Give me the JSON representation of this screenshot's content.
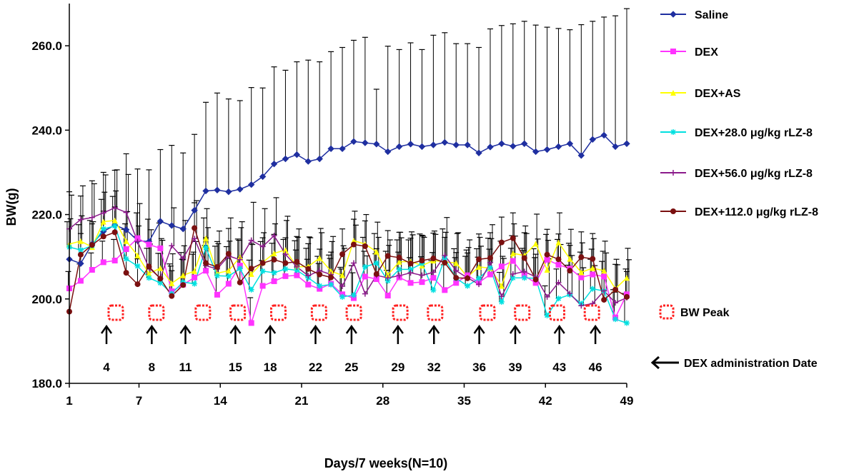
{
  "chart_data": {
    "type": "line",
    "title": "",
    "xlabel": "Days/7 weeks(N=10)",
    "ylabel": "BW(g)",
    "xlim": [
      1,
      49
    ],
    "ylim": [
      180,
      270
    ],
    "xticks": [
      "1",
      "7",
      "14",
      "21",
      "28",
      "35",
      "42",
      "49"
    ],
    "yticks": [
      "180.0",
      "200.0",
      "220.0",
      "240.0",
      "260.0"
    ],
    "series": [
      {
        "name": "Saline",
        "color": "#1f2fa0",
        "marker": "diamond",
        "values": [
          209.4,
          208.4,
          213.0,
          216.0,
          217.5,
          216.4,
          213.8,
          213.6,
          218.4,
          217.4,
          216.6,
          221.0,
          225.6,
          225.8,
          225.4,
          226.0,
          227.1,
          229.0,
          232.0,
          233.2,
          234.2,
          232.6,
          233.2,
          235.6,
          235.6,
          237.3,
          237.0,
          236.7,
          234.9,
          236.1,
          236.7,
          236.1,
          236.5,
          237.1,
          236.5,
          236.5,
          234.6,
          236.0,
          236.8,
          236.2,
          236.8,
          234.9,
          235.4,
          236.1,
          236.8,
          234.0,
          237.8,
          238.8,
          236.1,
          236.8
        ],
        "err": [
          16,
          16,
          15,
          14,
          13,
          18,
          17,
          17,
          17,
          19,
          18,
          18,
          21,
          23,
          22,
          21,
          23,
          21,
          23,
          21,
          22,
          24,
          23,
          23,
          24,
          24,
          25,
          13,
          25,
          23,
          24,
          23,
          26,
          26,
          24,
          24,
          25,
          28,
          28,
          29,
          29,
          30,
          29,
          28,
          27,
          31,
          28,
          28,
          31,
          32
        ]
      },
      {
        "name": "DEX",
        "color": "#ff33ff",
        "marker": "square",
        "values": [
          202.5,
          204.3,
          206.9,
          208.7,
          209.1,
          211.8,
          214.4,
          212.9,
          212.0,
          201.8,
          203.4,
          205.1,
          206.7,
          201.0,
          203.6,
          207.9,
          194.3,
          203.1,
          204.2,
          205.4,
          205.6,
          203.4,
          202.4,
          203.6,
          201.1,
          200.2,
          205.3,
          204.7,
          200.8,
          205.1,
          203.8,
          204.0,
          205.0,
          202.1,
          203.8,
          205.6,
          203.9,
          205.8,
          207.7,
          209.0,
          205.5,
          203.8,
          209.3,
          208.1,
          207.2,
          205.1,
          205.8,
          205.3,
          195.6,
          201.1
        ],
        "err": [
          4,
          4,
          4,
          5,
          5,
          6,
          6,
          6,
          6,
          6,
          6,
          6,
          6,
          6,
          6,
          6,
          6,
          6,
          6,
          6,
          6,
          6,
          6,
          6,
          6,
          6,
          6,
          6,
          6,
          6,
          6,
          6,
          6,
          6,
          6,
          6,
          6,
          6,
          6,
          6,
          6,
          6,
          6,
          6,
          6,
          6,
          6,
          6,
          6,
          6
        ]
      },
      {
        "name": "DEX+AS",
        "color": "#ffff00",
        "marker": "triangle",
        "values": [
          213.0,
          213.7,
          212.3,
          218.3,
          218.6,
          213.7,
          210.3,
          206.0,
          207.3,
          203.7,
          205.6,
          206.6,
          214.4,
          206.1,
          206.7,
          209.9,
          205.9,
          208.7,
          210.8,
          211.6,
          207.6,
          207.7,
          209.7,
          206.6,
          205.6,
          213.8,
          213.0,
          211.2,
          205.7,
          208.8,
          208.9,
          207.9,
          209.1,
          208.8,
          208.5,
          205.2,
          207.6,
          207.3,
          203.1,
          210.8,
          210.3,
          213.1,
          206.9,
          213.4,
          209.5,
          206.3,
          207.3,
          206.7,
          202.4,
          205.0
        ],
        "err": [
          6,
          6,
          6,
          7,
          7,
          7,
          7,
          7,
          7,
          7,
          7,
          7,
          7,
          7,
          7,
          7,
          7,
          7,
          7,
          7,
          7,
          7,
          7,
          7,
          7,
          7,
          7,
          7,
          7,
          7,
          7,
          7,
          7,
          7,
          7,
          7,
          7,
          7,
          7,
          7,
          7,
          7,
          7,
          7,
          7,
          7,
          7,
          7,
          7,
          7
        ]
      },
      {
        "name": "DEX+28.0 μg/kg rLZ-8",
        "color": "#00e0e0",
        "marker": "star",
        "values": [
          212.3,
          211.6,
          212.6,
          216.6,
          217.3,
          209.5,
          207.8,
          205.0,
          203.8,
          201.3,
          204.0,
          203.6,
          212.2,
          205.5,
          205.4,
          207.2,
          202.2,
          206.6,
          206.2,
          207.1,
          206.8,
          205.0,
          203.1,
          203.4,
          200.5,
          200.9,
          207.6,
          208.5,
          204.3,
          207.0,
          207.0,
          208.4,
          202.1,
          209.6,
          204.9,
          203.1,
          204.9,
          207.4,
          199.3,
          205.0,
          205.0,
          204.9,
          196.1,
          200.1,
          201.0,
          198.9,
          202.4,
          201.9,
          195.2,
          194.3
        ],
        "err": [
          6,
          6,
          6,
          7,
          7,
          7,
          7,
          7,
          7,
          7,
          7,
          7,
          7,
          7,
          7,
          7,
          7,
          7,
          7,
          7,
          7,
          7,
          7,
          7,
          7,
          7,
          7,
          7,
          7,
          7,
          7,
          7,
          7,
          7,
          7,
          7,
          7,
          7,
          7,
          7,
          7,
          7,
          7,
          7,
          7,
          7,
          7,
          7,
          7,
          7
        ]
      },
      {
        "name": "DEX+56.0 μg/kg rLZ-8",
        "color": "#8b1a8b",
        "marker": "cross",
        "values": [
          216.6,
          218.8,
          219.3,
          220.4,
          221.6,
          220.5,
          213.6,
          207.4,
          204.9,
          212.6,
          209.6,
          214.3,
          207.9,
          207.1,
          210.2,
          209.3,
          213.9,
          212.4,
          215.0,
          210.6,
          207.6,
          205.5,
          206.7,
          205.8,
          203.0,
          208.5,
          201.2,
          205.6,
          205.0,
          205.5,
          206.2,
          205.6,
          206.3,
          210.3,
          206.7,
          205.0,
          203.5,
          208.6,
          200.6,
          205.9,
          206.5,
          205.2,
          200.5,
          203.9,
          201.3,
          198.4,
          198.9,
          201.9,
          199.1,
          200.3
        ],
        "err": [
          8,
          8,
          8,
          9,
          9,
          9,
          9,
          9,
          9,
          9,
          9,
          9,
          9,
          9,
          9,
          9,
          9,
          9,
          9,
          9,
          9,
          9,
          9,
          9,
          9,
          9,
          9,
          9,
          9,
          9,
          9,
          9,
          9,
          9,
          9,
          9,
          9,
          9,
          9,
          9,
          9,
          9,
          9,
          9,
          9,
          9,
          9,
          9,
          9,
          9
        ]
      },
      {
        "name": "DEX+112.0 μg/kg rLZ-8",
        "color": "#7a1010",
        "marker": "circle",
        "values": [
          197.0,
          210.5,
          212.8,
          214.8,
          215.8,
          206.2,
          203.5,
          207.7,
          204.8,
          200.7,
          203.3,
          216.8,
          208.5,
          207.6,
          210.7,
          203.9,
          207.2,
          208.5,
          209.3,
          208.5,
          208.8,
          207.1,
          205.8,
          205.1,
          210.6,
          212.9,
          212.5,
          205.9,
          210.2,
          209.8,
          208.4,
          209.1,
          209.6,
          208.6,
          205.0,
          204.9,
          209.4,
          209.7,
          213.4,
          214.4,
          209.7,
          204.6,
          210.5,
          209.4,
          206.7,
          209.9,
          209.5,
          199.8,
          202.2,
          200.5
        ],
        "err": [
          5,
          5,
          5,
          6,
          6,
          6,
          6,
          6,
          6,
          6,
          6,
          6,
          6,
          6,
          6,
          6,
          6,
          6,
          6,
          6,
          6,
          6,
          6,
          6,
          6,
          6,
          6,
          6,
          6,
          6,
          6,
          6,
          6,
          6,
          6,
          6,
          6,
          6,
          6,
          6,
          6,
          6,
          6,
          6,
          6,
          6,
          6,
          6,
          6,
          6
        ]
      }
    ],
    "legend": {
      "position": "right",
      "peak_label": "BW Peak",
      "admin_label": "DEX administration Date"
    },
    "bw_peak_days": [
      5,
      8.5,
      12.5,
      15.5,
      19,
      22.5,
      25.5,
      29.5,
      32.5,
      37,
      40,
      43,
      46
    ],
    "administration_days": [
      {
        "x": 4.2,
        "label": "4"
      },
      {
        "x": 8.1,
        "label": "8"
      },
      {
        "x": 11,
        "label": "11"
      },
      {
        "x": 15.3,
        "label": "15"
      },
      {
        "x": 18.3,
        "label": "18"
      },
      {
        "x": 22.2,
        "label": "22"
      },
      {
        "x": 25.3,
        "label": "25"
      },
      {
        "x": 29.3,
        "label": "29"
      },
      {
        "x": 32.4,
        "label": "32"
      },
      {
        "x": 36.3,
        "label": "36"
      },
      {
        "x": 39.4,
        "label": "39"
      },
      {
        "x": 43.2,
        "label": "43"
      },
      {
        "x": 46.3,
        "label": "46"
      }
    ],
    "colors": {
      "axis": "#000000",
      "peak": "#ff2020"
    }
  }
}
